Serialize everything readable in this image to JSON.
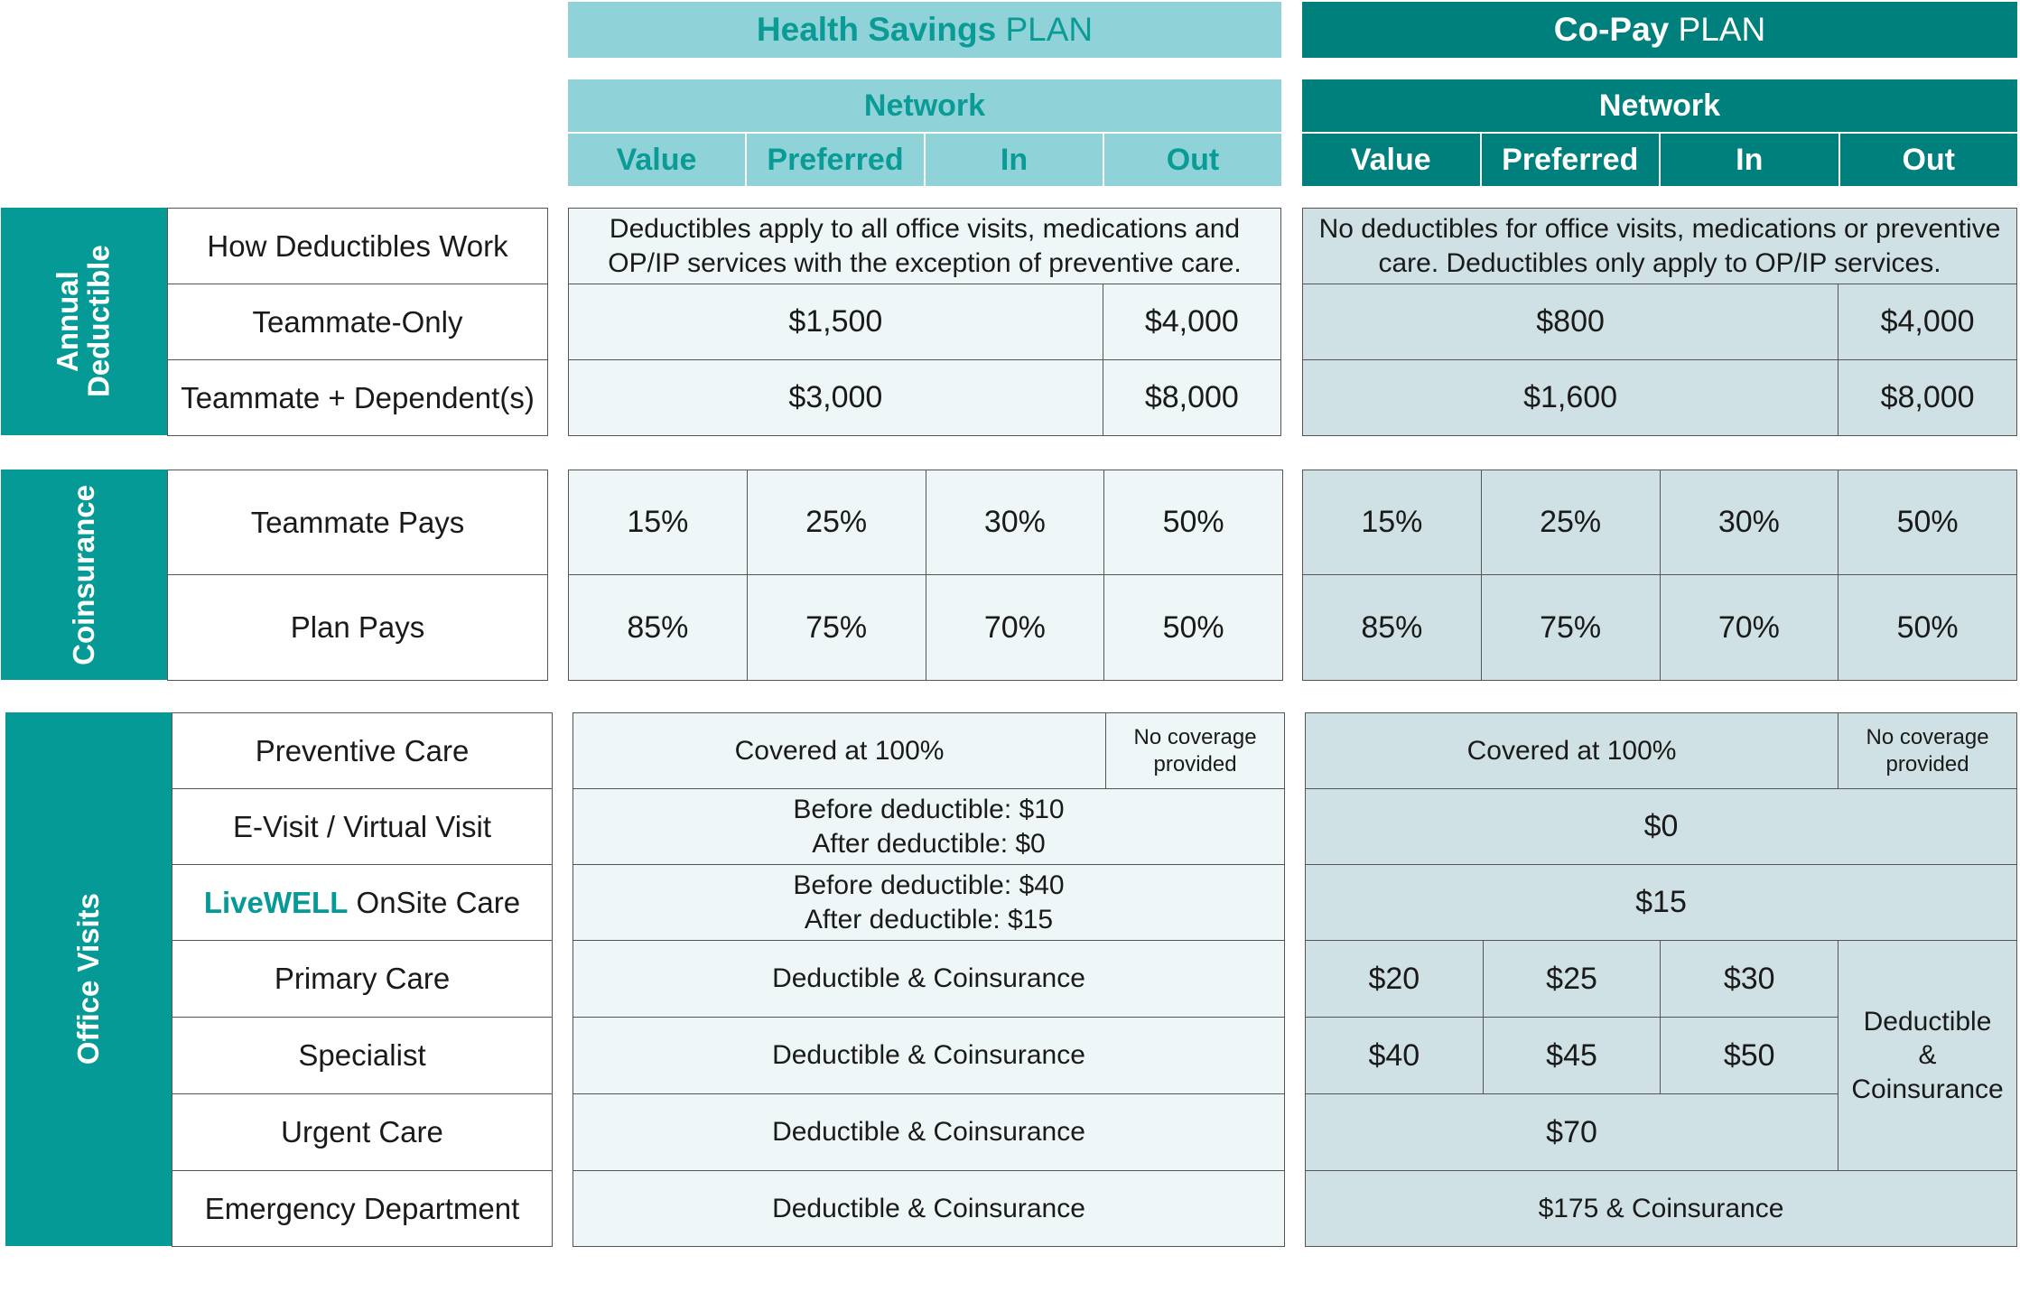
{
  "header": {
    "hsa": {
      "plan_bold": "Health Savings",
      "plan_rest": "PLAN",
      "network": "Network",
      "cols": [
        "Value",
        "Preferred",
        "In",
        "Out"
      ]
    },
    "copay": {
      "plan_bold": "Co-Pay",
      "plan_rest": "PLAN",
      "network": "Network",
      "cols": [
        "Value",
        "Preferred",
        "In",
        "Out"
      ]
    }
  },
  "deductible": {
    "section": "Annual Deductible",
    "rows": [
      "How Deductibles Work",
      "Teammate-Only",
      "Teammate + Dependent(s)"
    ],
    "hsa": {
      "how": "Deductibles apply to all office visits, medications and OP/IP services with the exception of preventive care.",
      "only_in": "$1,500",
      "only_out": "$4,000",
      "dep_in": "$3,000",
      "dep_out": "$8,000"
    },
    "copay": {
      "how": "No deductibles for office visits, medications or preventive care. Deductibles only apply to OP/IP services.",
      "only_in": "$800",
      "only_out": "$4,000",
      "dep_in": "$1,600",
      "dep_out": "$8,000"
    }
  },
  "coinsurance": {
    "section": "Coinsurance",
    "rows": [
      "Teammate Pays",
      "Plan Pays"
    ],
    "hsa": {
      "teammate": [
        "15%",
        "25%",
        "30%",
        "50%"
      ],
      "plan": [
        "85%",
        "75%",
        "70%",
        "50%"
      ]
    },
    "copay": {
      "teammate": [
        "15%",
        "25%",
        "30%",
        "50%"
      ],
      "plan": [
        "85%",
        "75%",
        "70%",
        "50%"
      ]
    }
  },
  "office": {
    "section": "Office Visits",
    "rows": {
      "preventive": "Preventive Care",
      "evisit": "E-Visit / Virtual Visit",
      "livewell_brand": "LiveWELL",
      "livewell_rest": "OnSite Care",
      "primary": "Primary Care",
      "specialist": "Specialist",
      "urgent": "Urgent Care",
      "emergency": "Emergency Department"
    },
    "hsa": {
      "preventive": "Covered at 100%",
      "preventive_out": "No coverage provided",
      "evisit_1": "Before deductible: $10",
      "evisit_2": "After deductible: $0",
      "livewell_1": "Before deductible: $40",
      "livewell_2": "After deductible: $15",
      "primary": "Deductible & Coinsurance",
      "specialist": "Deductible & Coinsurance",
      "urgent": "Deductible & Coinsurance",
      "emergency": "Deductible & Coinsurance"
    },
    "copay": {
      "preventive": "Covered at 100%",
      "preventive_out": "No coverage provided",
      "evisit": "$0",
      "livewell": "$15",
      "primary": [
        "$20",
        "$25",
        "$30"
      ],
      "specialist": [
        "$40",
        "$45",
        "$50"
      ],
      "out_1": "Deductible",
      "out_2": "&",
      "out_3": "Coinsurance",
      "urgent": "$70",
      "emergency": "$175 & Coinsurance"
    }
  }
}
